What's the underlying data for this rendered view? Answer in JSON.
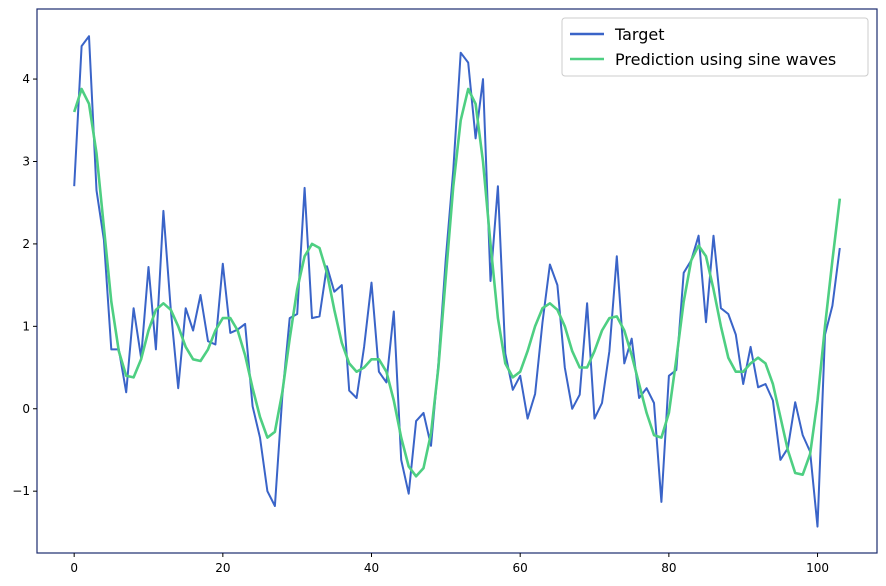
{
  "chart_data": {
    "type": "line",
    "title": "",
    "xlabel": "",
    "ylabel": "",
    "xlim": [
      -5,
      108
    ],
    "ylim": [
      -1.75,
      4.85
    ],
    "xticks": [
      0,
      20,
      40,
      60,
      80,
      100
    ],
    "xtick_labels": [
      "0",
      "20",
      "40",
      "60",
      "80",
      "100"
    ],
    "yticks": [
      -1,
      0,
      1,
      2,
      3,
      4
    ],
    "ytick_labels": [
      "−1",
      "0",
      "1",
      "2",
      "3",
      "4"
    ],
    "grid": false,
    "legend_position": "top-right",
    "series": [
      {
        "name": "Target",
        "color": "#3a64c8",
        "x": [
          0,
          1,
          2,
          3,
          4,
          5,
          6,
          7,
          8,
          9,
          10,
          11,
          12,
          13,
          14,
          15,
          16,
          17,
          18,
          19,
          20,
          21,
          22,
          23,
          24,
          25,
          26,
          27,
          28,
          29,
          30,
          31,
          32,
          33,
          34,
          35,
          36,
          37,
          38,
          39,
          40,
          41,
          42,
          43,
          44,
          45,
          46,
          47,
          48,
          49,
          50,
          51,
          52,
          53,
          54,
          55,
          56,
          57,
          58,
          59,
          60,
          61,
          62,
          63,
          64,
          65,
          66,
          67,
          68,
          69,
          70,
          71,
          72,
          73,
          74,
          75,
          76,
          77,
          78,
          79,
          80,
          81,
          82,
          83,
          84,
          85,
          86,
          87,
          88,
          89,
          90,
          91,
          92,
          93,
          94,
          95,
          96,
          97,
          98,
          99,
          100,
          101,
          102,
          103
        ],
        "y": [
          2.7,
          4.4,
          4.52,
          2.65,
          2.05,
          0.72,
          0.72,
          0.2,
          1.22,
          0.62,
          1.72,
          0.72,
          2.4,
          1.2,
          0.25,
          1.22,
          0.95,
          1.38,
          0.82,
          0.78,
          1.76,
          0.92,
          0.96,
          1.03,
          0.03,
          -0.35,
          -1.0,
          -1.18,
          0.15,
          1.1,
          1.15,
          2.68,
          1.1,
          1.12,
          1.73,
          1.42,
          1.5,
          0.22,
          0.13,
          0.75,
          1.53,
          0.45,
          0.32,
          1.18,
          -0.62,
          -1.03,
          -0.15,
          -0.05,
          -0.45,
          0.55,
          1.82,
          2.9,
          4.32,
          4.2,
          3.28,
          4.0,
          1.55,
          2.7,
          0.67,
          0.23,
          0.4,
          -0.12,
          0.18,
          1.05,
          1.75,
          1.5,
          0.5,
          0.0,
          0.17,
          1.28,
          -0.12,
          0.07,
          0.7,
          1.85,
          0.55,
          0.85,
          0.13,
          0.25,
          0.07,
          -1.13,
          0.4,
          0.47,
          1.65,
          1.8,
          2.1,
          1.05,
          2.1,
          1.22,
          1.15,
          0.9,
          0.3,
          0.75,
          0.26,
          0.3,
          0.1,
          -0.62,
          -0.48,
          0.08,
          -0.32,
          -0.52,
          -1.43,
          0.9,
          1.25,
          1.95
        ]
      },
      {
        "name": "Prediction using sine waves",
        "color": "#4ecf82",
        "x": [
          0,
          1,
          2,
          3,
          4,
          5,
          6,
          7,
          8,
          9,
          10,
          11,
          12,
          13,
          14,
          15,
          16,
          17,
          18,
          19,
          20,
          21,
          22,
          23,
          24,
          25,
          26,
          27,
          28,
          29,
          30,
          31,
          32,
          33,
          34,
          35,
          36,
          37,
          38,
          39,
          40,
          41,
          42,
          43,
          44,
          45,
          46,
          47,
          48,
          49,
          50,
          51,
          52,
          53,
          54,
          55,
          56,
          57,
          58,
          59,
          60,
          61,
          62,
          63,
          64,
          65,
          66,
          67,
          68,
          69,
          70,
          71,
          72,
          73,
          74,
          75,
          76,
          77,
          78,
          79,
          80,
          81,
          82,
          83,
          84,
          85,
          86,
          87,
          88,
          89,
          90,
          91,
          92,
          93,
          94,
          95,
          96,
          97,
          98,
          99,
          100,
          101,
          102,
          103
        ],
        "y": [
          3.6,
          3.88,
          3.7,
          3.1,
          2.2,
          1.3,
          0.7,
          0.4,
          0.38,
          0.6,
          0.95,
          1.2,
          1.28,
          1.2,
          1.0,
          0.75,
          0.6,
          0.58,
          0.72,
          0.95,
          1.1,
          1.1,
          0.95,
          0.65,
          0.25,
          -0.1,
          -0.35,
          -0.28,
          0.2,
          0.85,
          1.45,
          1.85,
          2.0,
          1.95,
          1.65,
          1.2,
          0.8,
          0.55,
          0.45,
          0.5,
          0.6,
          0.6,
          0.45,
          0.1,
          -0.35,
          -0.7,
          -0.82,
          -0.72,
          -0.3,
          0.5,
          1.6,
          2.7,
          3.5,
          3.88,
          3.7,
          3.0,
          2.0,
          1.1,
          0.55,
          0.38,
          0.45,
          0.7,
          1.0,
          1.22,
          1.28,
          1.2,
          1.0,
          0.7,
          0.5,
          0.5,
          0.7,
          0.95,
          1.1,
          1.12,
          0.95,
          0.65,
          0.3,
          -0.05,
          -0.32,
          -0.35,
          -0.05,
          0.6,
          1.3,
          1.8,
          1.98,
          1.85,
          1.45,
          1.0,
          0.62,
          0.45,
          0.45,
          0.55,
          0.62,
          0.55,
          0.3,
          -0.1,
          -0.5,
          -0.78,
          -0.8,
          -0.55,
          0.1,
          1.0,
          1.8,
          2.55
        ]
      }
    ]
  }
}
